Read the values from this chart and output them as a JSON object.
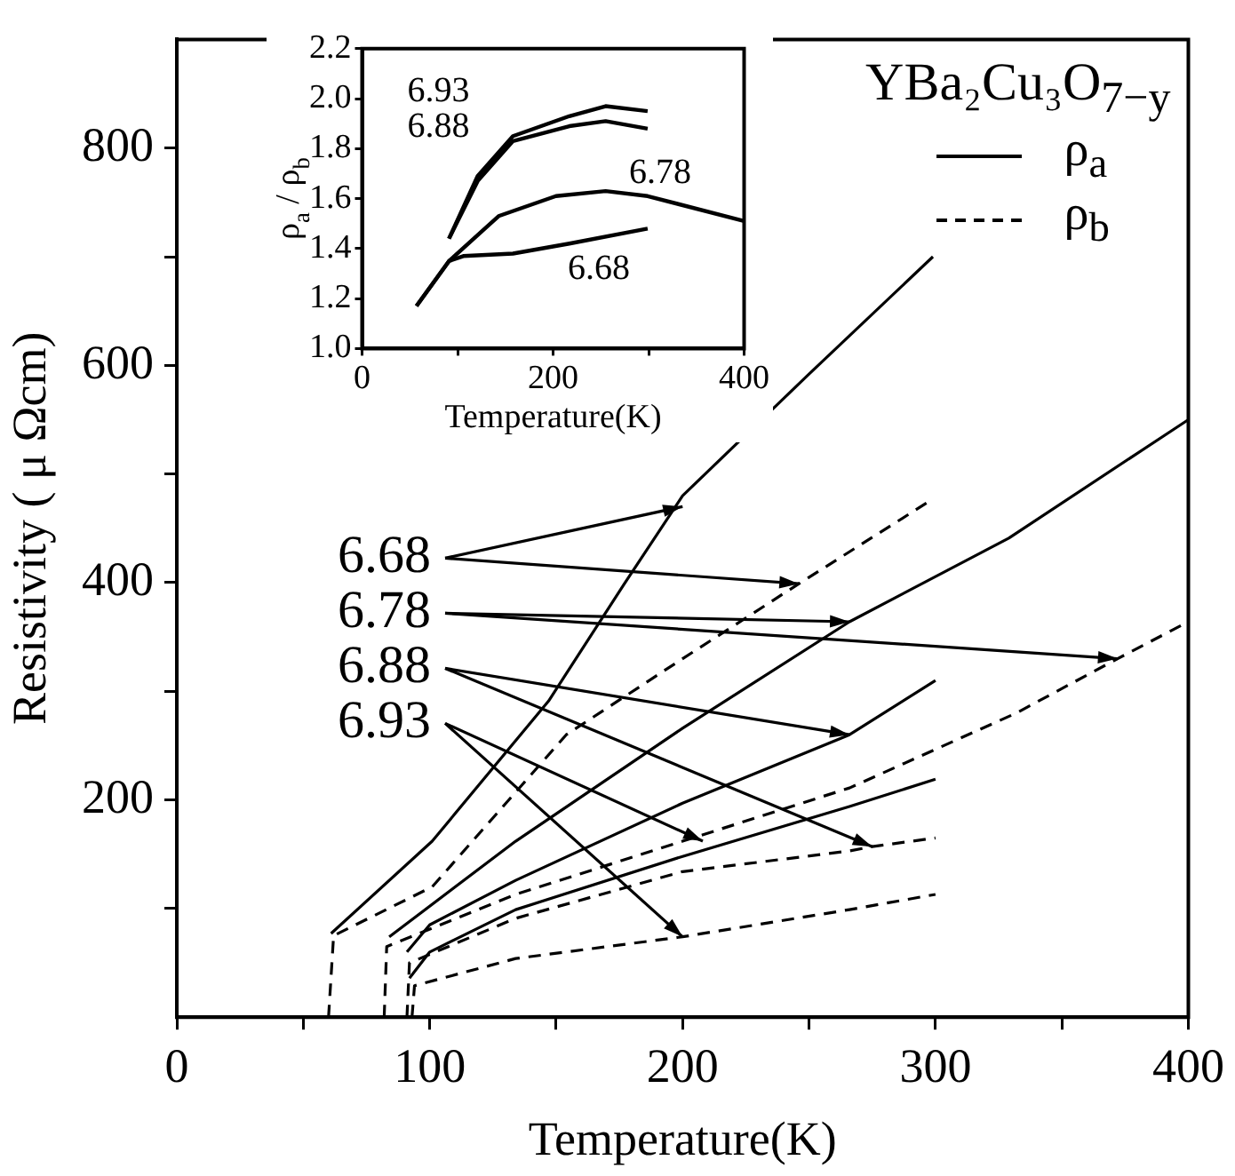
{
  "chart_data": [
    {
      "type": "line",
      "xlabel": "Temperature(K)",
      "ylabel": "Resistivity ( μ Ωcm)",
      "legend_title": "YBa₂Cu₃O$_{7−y}$",
      "legend": "top right",
      "marker": "none",
      "xlim": [
        0,
        400
      ],
      "xticks": [
        0,
        {
          "value": 50,
          "label": null
        },
        100,
        {
          "value": 150,
          "label": null
        },
        200,
        {
          "value": 250,
          "label": null
        },
        300,
        {
          "value": 350,
          "label": null
        },
        400
      ],
      "ylim": [
        0,
        900
      ],
      "yticks": [
        {
          "value": 100,
          "label": null
        },
        200,
        {
          "value": 300,
          "label": null
        },
        400,
        {
          "value": 500,
          "label": null
        },
        600,
        {
          "value": 700,
          "label": null
        },
        800
      ],
      "series": [
        {
          "name": "ρ$_{a}$",
          "color": "#000000",
          "line_style": "solid",
          "x": [
            61,
            101,
            147,
            177,
            200,
            250,
            299
          ],
          "values": [
            77,
            162,
            291,
            399,
            480,
            592,
            700
          ]
        },
        {
          "name": "ρ$_{b}$",
          "color": "#000000",
          "line_style": "dashed",
          "x": [
            60,
            62,
            101,
            154,
            200,
            246,
            299
          ],
          "values": [
            0,
            75,
            120,
            260,
            330,
            399,
            477
          ]
        },
        {
          "color": "#000000",
          "line_style": "solid",
          "x": [
            84,
            134,
            200,
            266,
            329,
            400
          ],
          "values": [
            74,
            162,
            266,
            364,
            441,
            550
          ]
        },
        {
          "color": "#000000",
          "line_style": "dashed",
          "x": [
            82,
            83,
            134,
            200,
            266,
            332,
            372,
            400
          ],
          "values": [
            0,
            65,
            113,
            162,
            211,
            280,
            330,
            364
          ]
        },
        {
          "color": "#000000",
          "line_style": "solid",
          "x": [
            91,
            100,
            134,
            200,
            266,
            300
          ],
          "values": [
            60,
            85,
            126,
            197,
            260,
            310
          ]
        },
        {
          "color": "#000000",
          "line_style": "dashed",
          "x": [
            91,
            92,
            134,
            200,
            266,
            275,
            300
          ],
          "values": [
            0,
            50,
            91,
            134,
            153,
            157,
            165
          ]
        },
        {
          "color": "#000000",
          "line_style": "solid",
          "x": [
            92,
            100,
            134,
            200,
            266,
            300
          ],
          "values": [
            36,
            60,
            99,
            148,
            194,
            219
          ]
        },
        {
          "color": "#000000",
          "line_style": "dashed",
          "x": [
            93,
            94,
            134,
            200,
            266,
            300
          ],
          "values": [
            0,
            29,
            54,
            74,
            99,
            113
          ]
        }
      ],
      "annotations": [
        {
          "text": "6.68",
          "x": 200,
          "y": 470
        },
        {
          "text": "6.78",
          "x": 266,
          "y": 364
        },
        {
          "text": "6.88",
          "x": 266,
          "y": 260
        },
        {
          "text": "6.93",
          "x": 208,
          "y": 162
        }
      ]
    },
    {
      "type": "line",
      "xlabel": "Temperature(K)",
      "ylabel": "ρ$_{a}$ / ρ$_{b}$",
      "marker": "none",
      "xlim": [
        0,
        400
      ],
      "xticks": [
        0,
        {
          "value": 100,
          "label": null
        },
        200,
        {
          "value": 300,
          "label": null
        },
        400
      ],
      "ylim": [
        1.0,
        2.2
      ],
      "yticks": [
        {
          "value": 1.0,
          "label": "1.0"
        },
        1.2,
        1.4,
        1.6,
        1.8,
        {
          "value": 2.0,
          "label": "2.0"
        },
        2.2
      ],
      "series": [
        {
          "name": "6.68",
          "color": "#000000",
          "x": [
            57,
            91,
            106,
            158,
            217,
            299
          ],
          "values": [
            1.17,
            1.35,
            1.37,
            1.38,
            1.42,
            1.48
          ]
        },
        {
          "name": "6.78",
          "color": "#000000",
          "x": [
            57,
            91,
            143,
            203,
            255,
            299,
            400
          ],
          "values": [
            1.17,
            1.35,
            1.53,
            1.61,
            1.63,
            1.61,
            1.51
          ]
        },
        {
          "name": "6.88",
          "color": "#000000",
          "x": [
            91,
            121,
            158,
            217,
            255,
            299
          ],
          "values": [
            1.44,
            1.67,
            1.83,
            1.89,
            1.91,
            1.88
          ]
        },
        {
          "name": "6.93",
          "color": "#000000",
          "x": [
            91,
            121,
            158,
            217,
            255,
            299
          ],
          "values": [
            1.44,
            1.69,
            1.85,
            1.93,
            1.97,
            1.95
          ]
        }
      ]
    }
  ]
}
